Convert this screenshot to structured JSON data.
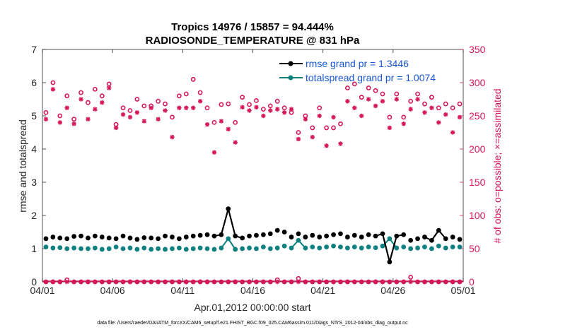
{
  "chart_data": {
    "type": "line",
    "title_line1": "Tropics 14976 / 15857 = 94.444%",
    "title_line2": "RADIOSONDE_TEMPERATURE @ 831 hPa",
    "xlabel": "Apr.01,2012 00:00:00 start",
    "ylabel_left": "rmse and totalspread",
    "ylabel_right": "# of obs: o=possible; ×=assimilated",
    "xlim": [
      0,
      30
    ],
    "ylim_left": [
      0,
      7
    ],
    "ylim_right": [
      0,
      350
    ],
    "x_ticks": [
      0,
      5,
      10,
      15,
      20,
      25,
      30
    ],
    "x_tick_labels": [
      "04/01",
      "04/06",
      "04/11",
      "04/16",
      "04/21",
      "04/26",
      "05/01"
    ],
    "y_ticks_left": [
      "0",
      "1",
      "2",
      "3",
      "4",
      "5",
      "6",
      "7"
    ],
    "y_ticks_right": [
      "0",
      "50",
      "100",
      "150",
      "200",
      "250",
      "300",
      "350"
    ],
    "colors": {
      "rmse": "#000000",
      "spread": "#0f8080",
      "obs": "#d6175a",
      "legend_text": "#1a57d6"
    },
    "footnote": "data file: /Users/raeder/DAI/ATM_forcXX/CAM6_setup/f.e21.FHIST_BGC.f09_025.CAM6assim.011/Diags_NTrS_2012-04/obs_diag_output.nc",
    "series": [
      {
        "name": "rmse grand pr = 1.3446",
        "axis": "left",
        "x": [
          0.25,
          0.75,
          1.25,
          1.75,
          2.25,
          2.75,
          3.25,
          3.75,
          4.25,
          4.75,
          5.25,
          5.75,
          6.25,
          6.75,
          7.25,
          7.75,
          8.25,
          8.75,
          9.25,
          9.75,
          10.25,
          10.75,
          11.25,
          11.75,
          12.25,
          12.75,
          13.25,
          13.75,
          14.25,
          14.75,
          15.25,
          15.75,
          16.25,
          16.75,
          17.25,
          17.75,
          18.25,
          18.75,
          19.25,
          19.75,
          20.25,
          20.75,
          21.25,
          21.75,
          22.25,
          22.75,
          23.25,
          23.75,
          24.25,
          24.75,
          25.25,
          25.75,
          26.25,
          26.75,
          27.25,
          27.75,
          28.25,
          28.75,
          29.25,
          29.75
        ],
        "values": [
          1.3,
          1.35,
          1.32,
          1.3,
          1.37,
          1.38,
          1.32,
          1.38,
          1.35,
          1.32,
          1.3,
          1.38,
          1.32,
          1.28,
          1.33,
          1.32,
          1.3,
          1.38,
          1.35,
          1.3,
          1.35,
          1.38,
          1.4,
          1.42,
          1.38,
          1.42,
          2.2,
          1.38,
          1.32,
          1.38,
          1.4,
          1.42,
          1.45,
          1.55,
          1.5,
          1.35,
          1.45,
          1.35,
          1.4,
          1.35,
          1.38,
          1.42,
          1.45,
          1.35,
          1.4,
          1.35,
          1.42,
          1.38,
          1.45,
          0.6,
          1.38,
          1.42,
          1.25,
          1.3,
          1.35,
          1.25,
          1.55,
          1.3,
          1.35,
          1.28
        ]
      },
      {
        "name": "totalspread grand pr = 1.0074",
        "axis": "left",
        "x": [
          0.25,
          0.75,
          1.25,
          1.75,
          2.25,
          2.75,
          3.25,
          3.75,
          4.25,
          4.75,
          5.25,
          5.75,
          6.25,
          6.75,
          7.25,
          7.75,
          8.25,
          8.75,
          9.25,
          9.75,
          10.25,
          10.75,
          11.25,
          11.75,
          12.25,
          12.75,
          13.25,
          13.75,
          14.25,
          14.75,
          15.25,
          15.75,
          16.25,
          16.75,
          17.25,
          17.75,
          18.25,
          18.75,
          19.25,
          19.75,
          20.25,
          20.75,
          21.25,
          21.75,
          22.25,
          22.75,
          23.25,
          23.75,
          24.25,
          24.75,
          25.25,
          25.75,
          26.25,
          26.75,
          27.25,
          27.75,
          28.25,
          28.75,
          29.25,
          29.75
        ],
        "values": [
          1.05,
          1.02,
          1.03,
          1.0,
          1.02,
          1.0,
          1.0,
          1.02,
          0.98,
          1.0,
          1.05,
          1.0,
          1.02,
          0.98,
          1.02,
          0.98,
          1.0,
          0.98,
          1.0,
          1.02,
          0.98,
          1.0,
          1.02,
          1.0,
          0.98,
          1.02,
          1.3,
          0.98,
          1.0,
          1.02,
          1.0,
          1.05,
          1.0,
          1.02,
          1.08,
          1.02,
          1.25,
          1.02,
          1.05,
          1.02,
          1.05,
          1.08,
          1.05,
          1.02,
          1.05,
          1.02,
          1.05,
          1.03,
          1.08,
          1.3,
          1.02,
          1.05,
          1.0,
          1.02,
          1.05,
          1.0,
          1.08,
          1.02,
          1.05,
          1.05
        ]
      },
      {
        "name": "possible",
        "axis": "right",
        "x": [
          0.25,
          0.75,
          1.25,
          1.75,
          2.25,
          2.75,
          3.25,
          3.75,
          4.25,
          4.75,
          5.25,
          5.75,
          6.25,
          6.75,
          7.25,
          7.75,
          8.25,
          8.75,
          9.25,
          9.75,
          10.25,
          10.75,
          11.25,
          11.75,
          12.25,
          12.75,
          13.25,
          13.75,
          14.25,
          14.75,
          15.25,
          15.75,
          16.25,
          16.75,
          17.25,
          17.75,
          18.25,
          18.75,
          19.25,
          19.75,
          20.25,
          20.75,
          21.25,
          21.75,
          22.25,
          22.75,
          23.25,
          23.75,
          24.25,
          24.75,
          25.25,
          25.75,
          26.25,
          26.75,
          27.25,
          27.75,
          28.25,
          28.75,
          29.25,
          29.75
        ],
        "values": [
          255,
          300,
          250,
          280,
          245,
          285,
          270,
          290,
          280,
          298,
          237,
          262,
          258,
          275,
          265,
          265,
          272,
          268,
          248,
          280,
          283,
          305,
          285,
          262,
          240,
          267,
          268,
          240,
          278,
          267,
          273,
          260,
          265,
          272,
          262,
          255,
          225,
          250,
          232,
          262,
          232,
          232,
          238,
          292,
          298,
          278,
          292,
          288,
          283,
          248,
          283,
          248,
          272,
          283,
          268,
          278,
          262,
          268,
          262,
          268
        ],
        "values_near_zero": [
          0,
          0,
          0,
          3,
          0,
          0,
          0,
          0,
          0,
          0,
          0,
          0,
          0,
          0,
          0,
          0,
          0,
          0,
          0,
          0,
          0,
          0,
          0,
          0,
          0,
          0,
          0,
          0,
          0,
          0,
          0,
          0,
          0,
          3,
          0,
          0,
          5,
          0,
          0,
          0,
          0,
          0,
          0,
          0,
          0,
          0,
          0,
          0,
          0,
          0,
          0,
          0,
          7,
          0,
          0,
          0,
          0,
          0,
          0,
          0
        ]
      },
      {
        "name": "assimilated",
        "axis": "right",
        "x": [
          0.25,
          0.75,
          1.25,
          1.75,
          2.25,
          2.75,
          3.25,
          3.75,
          4.25,
          4.75,
          5.25,
          5.75,
          6.25,
          6.75,
          7.25,
          7.75,
          8.25,
          8.75,
          9.25,
          9.75,
          10.25,
          10.75,
          11.25,
          11.75,
          12.25,
          12.75,
          13.25,
          13.75,
          14.25,
          14.75,
          15.25,
          15.75,
          16.25,
          16.75,
          17.25,
          17.75,
          18.25,
          18.75,
          19.25,
          19.75,
          20.25,
          20.75,
          21.25,
          21.75,
          22.25,
          22.75,
          23.25,
          23.75,
          24.25,
          24.75,
          25.25,
          25.75,
          26.25,
          26.75,
          27.25,
          27.75,
          28.25,
          28.75,
          29.25,
          29.75
        ],
        "values": [
          245,
          290,
          240,
          262,
          238,
          275,
          245,
          260,
          270,
          292,
          232,
          252,
          248,
          255,
          242,
          262,
          245,
          258,
          218,
          262,
          262,
          262,
          272,
          237,
          195,
          242,
          230,
          210,
          263,
          258,
          263,
          250,
          258,
          260,
          255,
          260,
          215,
          245,
          218,
          250,
          205,
          248,
          208,
          272,
          262,
          250,
          275,
          265,
          272,
          232,
          275,
          238,
          260,
          275,
          255,
          262,
          240,
          252,
          225,
          248
        ],
        "values_near_zero": [
          0,
          0,
          0,
          0,
          0,
          0,
          0,
          0,
          0,
          0,
          0,
          0,
          0,
          0,
          0,
          0,
          0,
          0,
          0,
          0,
          0,
          0,
          0,
          0,
          0,
          0,
          0,
          0,
          0,
          0,
          0,
          0,
          0,
          0,
          0,
          0,
          0,
          0,
          0,
          0,
          0,
          0,
          0,
          0,
          0,
          0,
          0,
          0,
          0,
          0,
          0,
          0,
          0,
          0,
          0,
          0,
          0,
          0,
          0,
          0
        ]
      }
    ]
  }
}
